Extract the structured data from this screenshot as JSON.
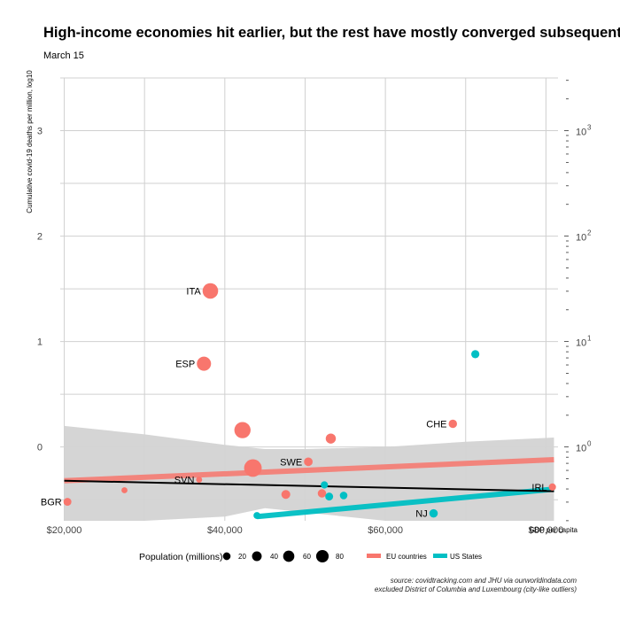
{
  "title": "High-income economies hit earlier, but the rest have mostly converged subsequently.",
  "subtitle": "March 15",
  "source": {
    "line1": "source: covidtracking.com and JHU via ourworldindata.com",
    "line2": "excluded District of Columbia and Luxembourg (city-like outliers)"
  },
  "colors": {
    "eu": "#F8766D",
    "us": "#00BFC4",
    "fit": "#000000",
    "band": "#d3d3d3",
    "grid": "#d0d0d0"
  },
  "chart_data": {
    "type": "scatter",
    "title": "High-income economies hit earlier, but the rest have mostly converged subsequently.",
    "xlabel": "GDP per capita",
    "ylabel": "Cumulative covid-19 deaths per million, log10",
    "xlim": [
      19500,
      81500
    ],
    "ylim": [
      -0.7,
      3.5
    ],
    "x_ticks": [
      20000,
      40000,
      60000,
      80000
    ],
    "x_tick_labels": [
      "$20,000",
      "$40,000",
      "$60,000",
      "$80,000"
    ],
    "y_ticks": [
      0,
      1,
      2,
      3
    ],
    "y_tick_labels": [
      "0",
      "1",
      "2",
      "3"
    ],
    "y2_ticks": [
      0,
      1,
      2,
      3
    ],
    "y2_tick_labels": [
      "10",
      "10",
      "10",
      "10"
    ],
    "y2_tick_exponents": [
      "0",
      "1",
      "2",
      "3"
    ],
    "legend": {
      "size_title": "Population (millions)",
      "sizes": [
        20,
        40,
        60,
        80
      ],
      "color_entries": [
        "EU countries",
        "US States"
      ]
    },
    "series": [
      {
        "name": "EU countries",
        "points": [
          {
            "label": "BGR",
            "x": 20400,
            "y": -0.52,
            "pop": 7
          },
          {
            "label": "",
            "x": 27500,
            "y": -0.41,
            "pop": 2
          },
          {
            "label": "SVN",
            "x": 36800,
            "y": -0.31,
            "pop": 2
          },
          {
            "label": "ESP",
            "x": 37400,
            "y": 0.79,
            "pop": 47
          },
          {
            "label": "ITA",
            "x": 38200,
            "y": 1.48,
            "pop": 60
          },
          {
            "label": "",
            "x": 42200,
            "y": 0.16,
            "pop": 67
          },
          {
            "label": "",
            "x": 43500,
            "y": -0.2,
            "pop": 83
          },
          {
            "label": "",
            "x": 47600,
            "y": -0.45,
            "pop": 11
          },
          {
            "label": "SWE",
            "x": 50400,
            "y": -0.14,
            "pop": 10
          },
          {
            "label": "",
            "x": 52100,
            "y": -0.44,
            "pop": 9
          },
          {
            "label": "",
            "x": 53200,
            "y": 0.08,
            "pop": 17
          },
          {
            "label": "CHE",
            "x": 68400,
            "y": 0.22,
            "pop": 9
          },
          {
            "label": "IRL",
            "x": 80800,
            "y": -0.38,
            "pop": 5
          }
        ]
      },
      {
        "name": "US States",
        "points": [
          {
            "label": "",
            "x": 44000,
            "y": -0.65,
            "pop": 4
          },
          {
            "label": "",
            "x": 52400,
            "y": -0.36,
            "pop": 5
          },
          {
            "label": "",
            "x": 53000,
            "y": -0.47,
            "pop": 7
          },
          {
            "label": "",
            "x": 54800,
            "y": -0.46,
            "pop": 6
          },
          {
            "label": "NJ",
            "x": 66000,
            "y": -0.63,
            "pop": 9
          },
          {
            "label": "",
            "x": 71200,
            "y": 0.88,
            "pop": 8
          }
        ]
      }
    ],
    "fits": {
      "overall": {
        "x": [
          20000,
          81000
        ],
        "y": [
          -0.32,
          -0.42
        ]
      },
      "overall_band": {
        "x": [
          20000,
          30000,
          40000,
          45000,
          50000,
          60000,
          70000,
          81000
        ],
        "upper": [
          0.2,
          0.12,
          0.02,
          -0.02,
          -0.02,
          0.0,
          0.05,
          0.09
        ],
        "lower": [
          -0.7,
          -0.7,
          -0.66,
          -0.58,
          -0.62,
          -0.7,
          -0.7,
          -0.7
        ]
      },
      "eu": {
        "x": [
          20000,
          81000
        ],
        "y": [
          -0.32,
          -0.12
        ]
      },
      "us": {
        "x": [
          44000,
          81000
        ],
        "y": [
          -0.66,
          -0.4
        ]
      }
    }
  }
}
